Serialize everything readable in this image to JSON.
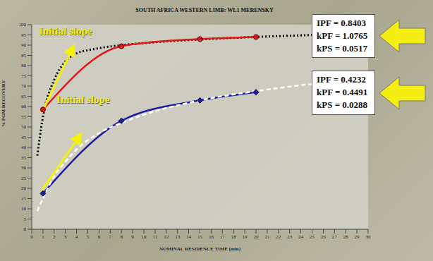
{
  "chart_data": {
    "type": "line",
    "title": "SOUTH AFRICA WESTERN LIMB: WL1 MERENSKY",
    "x_label": "NOMINAL RESIDENCE TIME (min)",
    "y_label": "% PGM RECOVERY",
    "xlim": [
      0,
      30
    ],
    "xticks": [
      0,
      1,
      2,
      3,
      4,
      5,
      6,
      7,
      8,
      9,
      10,
      11,
      12,
      13,
      14,
      15,
      16,
      17,
      18,
      19,
      20,
      21,
      22,
      23,
      24,
      25,
      26,
      27,
      28,
      29,
      30
    ],
    "ylim": [
      0,
      100
    ],
    "yticks": [
      0,
      5,
      10,
      15,
      20,
      25,
      30,
      35,
      40,
      45,
      50,
      55,
      60,
      65,
      70,
      75,
      80,
      85,
      90,
      95,
      100
    ],
    "grid": false,
    "series": [
      {
        "color": "#000000",
        "line_style": "dotted",
        "marker": "none",
        "x": [
          0.5,
          1,
          2,
          3,
          4,
          5,
          6,
          8,
          10,
          15,
          20,
          25,
          27
        ],
        "values": [
          36,
          55,
          73,
          82,
          86,
          87.5,
          88.5,
          90,
          91,
          92.8,
          94,
          95,
          95.5
        ]
      },
      {
        "color": "#e01818",
        "line_style": "solid",
        "marker": "circle",
        "x": [
          1,
          8,
          15,
          20
        ],
        "values": [
          58.5,
          89.5,
          93,
          94
        ]
      },
      {
        "color": "#1c1ca0",
        "line_style": "solid",
        "marker": "diamond",
        "x": [
          1,
          8,
          15,
          20
        ],
        "values": [
          17.5,
          53,
          63,
          67
        ]
      },
      {
        "color": "#ffffff",
        "line_style": "dashed",
        "marker": "none",
        "x": [
          0.5,
          1,
          2,
          3,
          4,
          6,
          8,
          10,
          15,
          20,
          25,
          27
        ],
        "values": [
          9,
          15,
          26,
          33,
          39,
          47,
          52,
          56,
          63,
          67.5,
          71,
          72
        ]
      }
    ],
    "annotations": [
      {
        "text": "Initial slope",
        "from": [
          0.9,
          57
        ],
        "to": [
          3.6,
          88
        ]
      },
      {
        "text": "Initial slope",
        "from": [
          0.9,
          19
        ],
        "to": [
          4.2,
          45
        ]
      }
    ],
    "boxes": [
      {
        "lines": [
          "IPF = 0.8403",
          "kPF = 1.0765",
          "kPS = 0.0517"
        ]
      },
      {
        "lines": [
          "IPF = 0.4232",
          "kPF = 0.4491",
          "kPS = 0.0288"
        ]
      }
    ]
  }
}
